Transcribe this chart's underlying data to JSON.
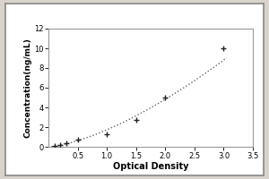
{
  "x_data": [
    0.1,
    0.2,
    0.3,
    0.5,
    1.0,
    1.5,
    2.0,
    3.0
  ],
  "y_data": [
    0.05,
    0.15,
    0.4,
    0.7,
    1.3,
    2.7,
    5.0,
    10.0
  ],
  "xlabel": "Optical Density",
  "ylabel": "Concentration(ng/mL)",
  "xlim": [
    0,
    3.5
  ],
  "ylim": [
    0,
    12
  ],
  "xticks": [
    0.5,
    1.0,
    1.5,
    2.0,
    2.5,
    3.0,
    3.5
  ],
  "yticks": [
    0,
    2,
    4,
    6,
    8,
    10,
    12
  ],
  "line_color": "#666666",
  "marker_color": "#222222",
  "background_color": "#f0ece4",
  "plot_bg_color": "#ffffff",
  "border_color": "#999999",
  "xlabel_fontsize": 7,
  "ylabel_fontsize": 6.5,
  "tick_fontsize": 6,
  "outer_bg": "#d8d4cc"
}
